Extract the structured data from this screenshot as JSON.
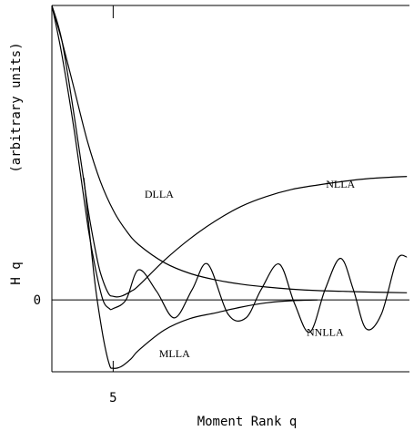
{
  "chart_data": {
    "type": "line",
    "title": "",
    "xlabel": "Moment Rank  q",
    "ylabel": "H q  (arbitrary units)",
    "y_label_main": "H q",
    "y_label_units": "(arbitrary units)",
    "x_ticks": [
      {
        "value": 5,
        "label": "5"
      }
    ],
    "y_ticks": [
      {
        "value": 0,
        "label": "0"
      }
    ],
    "xlim": [
      2.6,
      16.6
    ],
    "ylim": [
      -1.0,
      4.1
    ],
    "zero_line": true,
    "grid": false,
    "legend": "none",
    "line_color": "#000000",
    "series": [
      {
        "name": "DLLA",
        "x": [
          2.6,
          3,
          3.5,
          4,
          4.5,
          5,
          5.5,
          6,
          7,
          8,
          9,
          10,
          11,
          12,
          13,
          14,
          15,
          16.5
        ],
        "y": [
          4.1,
          3.6,
          2.9,
          2.2,
          1.65,
          1.25,
          0.97,
          0.77,
          0.52,
          0.37,
          0.28,
          0.22,
          0.18,
          0.15,
          0.13,
          0.12,
          0.11,
          0.1
        ]
      },
      {
        "name": "NLLA",
        "x": [
          2.6,
          3,
          3.5,
          4,
          4.3,
          4.5,
          4.8,
          5,
          5.3,
          5.7,
          6,
          7,
          8,
          9,
          10,
          11,
          12,
          13,
          14,
          15,
          16.5
        ],
        "y": [
          4.1,
          3.6,
          2.5,
          1.3,
          0.7,
          0.38,
          0.1,
          0.05,
          0.05,
          0.12,
          0.2,
          0.55,
          0.85,
          1.1,
          1.3,
          1.44,
          1.54,
          1.6,
          1.65,
          1.69,
          1.72
        ]
      },
      {
        "name": "MLLA",
        "x": [
          3.85,
          4,
          4.3,
          4.6,
          4.85,
          5,
          5.3,
          5.7,
          6,
          7,
          8,
          9,
          10,
          11,
          12,
          13
        ],
        "y": [
          1.7,
          1.2,
          0.2,
          -0.5,
          -0.9,
          -0.95,
          -0.93,
          -0.82,
          -0.7,
          -0.42,
          -0.26,
          -0.18,
          -0.1,
          -0.04,
          -0.01,
          0.0
        ]
      },
      {
        "name": "NNLLA",
        "x": [
          2.6,
          3,
          3.5,
          4,
          4.3,
          4.6,
          4.85,
          5,
          5.5,
          6,
          6.7,
          7.4,
          8.1,
          8.7,
          9.5,
          10.2,
          10.8,
          11.5,
          12.1,
          12.7,
          13.3,
          13.9,
          14.4,
          14.9,
          15.5,
          16.1,
          16.5
        ],
        "y": [
          4.1,
          3.4,
          2.3,
          1.05,
          0.45,
          0.0,
          -0.12,
          -0.12,
          0.0,
          0.42,
          0.12,
          -0.25,
          0.15,
          0.5,
          -0.2,
          -0.25,
          0.15,
          0.5,
          -0.05,
          -0.45,
          0.15,
          0.58,
          0.15,
          -0.4,
          -0.2,
          0.55,
          0.6
        ]
      }
    ],
    "annotations": [
      {
        "text": "DLLA",
        "x": 6.8,
        "y": 1.42
      },
      {
        "text": "NLLA",
        "x": 13.9,
        "y": 1.56
      },
      {
        "text": "MLLA",
        "x": 7.4,
        "y": -0.8
      },
      {
        "text": "NNLLA",
        "x": 13.3,
        "y": -0.5
      }
    ]
  }
}
